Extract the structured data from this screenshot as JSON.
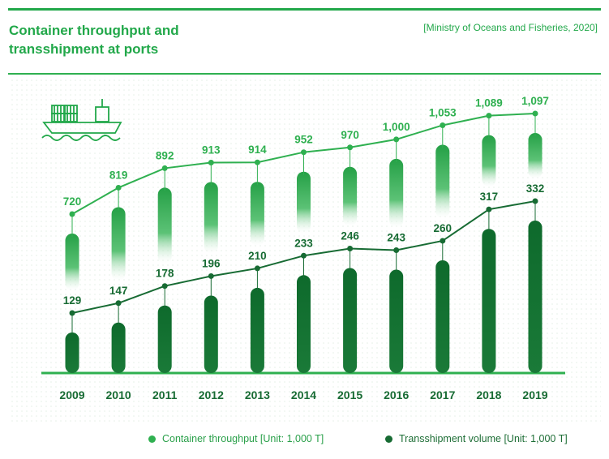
{
  "title": "Container throughput and transshipment at ports",
  "source": "[Ministry of Oceans and Fisheries, 2020]",
  "colors": {
    "accent": "#22a84a",
    "throughput": "#2fb050",
    "transshipment": "#176b33"
  },
  "icon": "cargo-ship-icon",
  "legend": {
    "throughput": "Container throughput [Unit: 1,000 T]",
    "transshipment": "Transshipment volume [Unit: 1,000 T]"
  },
  "chart_data": {
    "type": "bar",
    "categories": [
      "2009",
      "2010",
      "2011",
      "2012",
      "2013",
      "2014",
      "2015",
      "2016",
      "2017",
      "2018",
      "2019"
    ],
    "series": [
      {
        "name": "Container throughput [Unit: 1,000 T]",
        "values": [
          720,
          819,
          892,
          913,
          914,
          952,
          970,
          1000,
          1053,
          1089,
          1097
        ],
        "labels": [
          "720",
          "819",
          "892",
          "913",
          "914",
          "952",
          "970",
          "1,000",
          "1,053",
          "1,089",
          "1,097"
        ]
      },
      {
        "name": "Transshipment volume [Unit: 1,000 T]",
        "values": [
          129,
          147,
          178,
          196,
          210,
          233,
          246,
          243,
          260,
          317,
          332
        ],
        "labels": [
          "129",
          "147",
          "178",
          "196",
          "210",
          "233",
          "246",
          "243",
          "260",
          "317",
          "332"
        ]
      }
    ],
    "title": "Container throughput and transshipment at ports",
    "xlabel": "",
    "ylabel": "",
    "grid": false,
    "legend_position": "bottom"
  }
}
